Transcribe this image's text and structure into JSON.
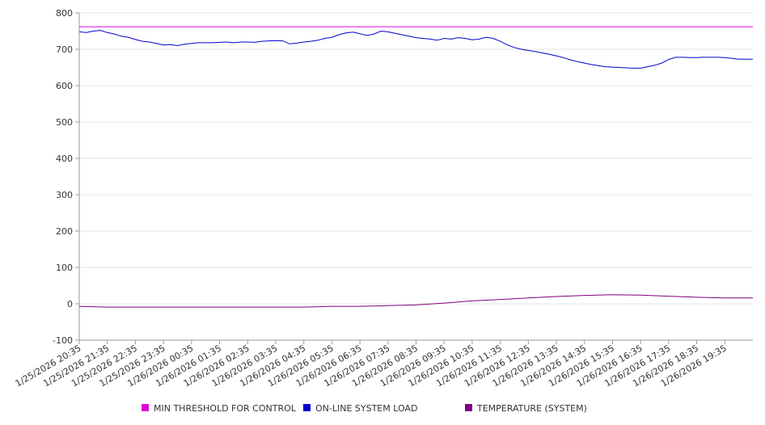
{
  "chart_data": {
    "type": "line",
    "ylim": [
      -100,
      800
    ],
    "y_ticks": [
      800,
      700,
      600,
      500,
      400,
      300,
      200,
      100,
      0,
      -100
    ],
    "x_ticks": [
      "1/25/2026 20:35",
      "1/25/2026 21:35",
      "1/25/2026 22:35",
      "1/25/2026 23:35",
      "1/26/2026 00:35",
      "1/26/2026 01:35",
      "1/26/2026 02:35",
      "1/26/2026 03:35",
      "1/26/2026 04:35",
      "1/26/2026 05:35",
      "1/26/2026 06:35",
      "1/26/2026 07:35",
      "1/26/2026 08:35",
      "1/26/2026 09:35",
      "1/26/2026 10:35",
      "1/26/2026 11:35",
      "1/26/2026 12:35",
      "1/26/2026 13:35",
      "1/26/2026 14:35",
      "1/26/2026 15:35",
      "1/26/2026 16:35",
      "1/26/2026 17:35",
      "1/26/2026 18:35",
      "1/26/2026 19:35"
    ],
    "x_range": [
      "1/25/2026 20:35",
      "1/26/2026 20:35"
    ],
    "grid": true,
    "legend_position": "bottom",
    "series": [
      {
        "name": "MIN THRESHOLD FOR CONTROL",
        "color": "#dd00dd",
        "points": [
          [
            "1/25/2026 20:35",
            762
          ],
          [
            "1/26/2026 20:35",
            762
          ]
        ]
      },
      {
        "name": "ON-LINE SYSTEM LOAD",
        "color": "#0000cc",
        "points": [
          [
            "1/25/2026 20:35",
            748
          ],
          [
            "1/25/2026 20:50",
            746
          ],
          [
            "1/25/2026 21:05",
            750
          ],
          [
            "1/25/2026 21:20",
            752
          ],
          [
            "1/25/2026 21:35",
            746
          ],
          [
            "1/25/2026 21:50",
            742
          ],
          [
            "1/25/2026 22:05",
            736
          ],
          [
            "1/25/2026 22:20",
            733
          ],
          [
            "1/25/2026 22:35",
            727
          ],
          [
            "1/25/2026 22:50",
            722
          ],
          [
            "1/25/2026 23:05",
            720
          ],
          [
            "1/25/2026 23:20",
            716
          ],
          [
            "1/25/2026 23:35",
            712
          ],
          [
            "1/25/2026 23:50",
            713
          ],
          [
            "1/26/2026 00:05",
            710
          ],
          [
            "1/26/2026 00:20",
            714
          ],
          [
            "1/26/2026 00:35",
            716
          ],
          [
            "1/26/2026 00:50",
            718
          ],
          [
            "1/26/2026 01:05",
            718
          ],
          [
            "1/26/2026 01:20",
            718
          ],
          [
            "1/26/2026 01:35",
            719
          ],
          [
            "1/26/2026 01:50",
            720
          ],
          [
            "1/26/2026 02:05",
            718
          ],
          [
            "1/26/2026 02:20",
            720
          ],
          [
            "1/26/2026 02:35",
            720
          ],
          [
            "1/26/2026 02:50",
            719
          ],
          [
            "1/26/2026 03:05",
            722
          ],
          [
            "1/26/2026 03:20",
            723
          ],
          [
            "1/26/2026 03:35",
            724
          ],
          [
            "1/26/2026 03:50",
            723
          ],
          [
            "1/26/2026 04:05",
            715
          ],
          [
            "1/26/2026 04:20",
            717
          ],
          [
            "1/26/2026 04:35",
            720
          ],
          [
            "1/26/2026 04:50",
            722
          ],
          [
            "1/26/2026 05:05",
            725
          ],
          [
            "1/26/2026 05:20",
            730
          ],
          [
            "1/26/2026 05:35",
            733
          ],
          [
            "1/26/2026 05:50",
            740
          ],
          [
            "1/26/2026 06:05",
            745
          ],
          [
            "1/26/2026 06:20",
            747
          ],
          [
            "1/26/2026 06:35",
            743
          ],
          [
            "1/26/2026 06:50",
            738
          ],
          [
            "1/26/2026 07:05",
            742
          ],
          [
            "1/26/2026 07:20",
            750
          ],
          [
            "1/26/2026 07:35",
            748
          ],
          [
            "1/26/2026 07:50",
            744
          ],
          [
            "1/26/2026 08:05",
            740
          ],
          [
            "1/26/2026 08:20",
            736
          ],
          [
            "1/26/2026 08:35",
            732
          ],
          [
            "1/26/2026 08:50",
            730
          ],
          [
            "1/26/2026 09:05",
            728
          ],
          [
            "1/26/2026 09:20",
            725
          ],
          [
            "1/26/2026 09:35",
            730
          ],
          [
            "1/26/2026 09:50",
            728
          ],
          [
            "1/26/2026 10:05",
            732
          ],
          [
            "1/26/2026 10:20",
            730
          ],
          [
            "1/26/2026 10:35",
            726
          ],
          [
            "1/26/2026 10:50",
            728
          ],
          [
            "1/26/2026 11:05",
            733
          ],
          [
            "1/26/2026 11:20",
            730
          ],
          [
            "1/26/2026 11:35",
            722
          ],
          [
            "1/26/2026 11:50",
            712
          ],
          [
            "1/26/2026 12:05",
            705
          ],
          [
            "1/26/2026 12:20",
            700
          ],
          [
            "1/26/2026 12:35",
            697
          ],
          [
            "1/26/2026 12:50",
            694
          ],
          [
            "1/26/2026 13:05",
            690
          ],
          [
            "1/26/2026 13:20",
            686
          ],
          [
            "1/26/2026 13:35",
            682
          ],
          [
            "1/26/2026 13:50",
            677
          ],
          [
            "1/26/2026 14:05",
            671
          ],
          [
            "1/26/2026 14:20",
            666
          ],
          [
            "1/26/2026 14:35",
            662
          ],
          [
            "1/26/2026 14:50",
            658
          ],
          [
            "1/26/2026 15:05",
            655
          ],
          [
            "1/26/2026 15:20",
            652
          ],
          [
            "1/26/2026 15:35",
            651
          ],
          [
            "1/26/2026 15:50",
            650
          ],
          [
            "1/26/2026 16:05",
            649
          ],
          [
            "1/26/2026 16:20",
            648
          ],
          [
            "1/26/2026 16:35",
            648
          ],
          [
            "1/26/2026 16:50",
            652
          ],
          [
            "1/26/2026 17:05",
            656
          ],
          [
            "1/26/2026 17:20",
            662
          ],
          [
            "1/26/2026 17:35",
            672
          ],
          [
            "1/26/2026 17:50",
            678
          ],
          [
            "1/26/2026 18:05",
            678
          ],
          [
            "1/26/2026 18:20",
            677
          ],
          [
            "1/26/2026 18:35",
            677
          ],
          [
            "1/26/2026 18:50",
            678
          ],
          [
            "1/26/2026 19:05",
            678
          ],
          [
            "1/26/2026 19:20",
            678
          ],
          [
            "1/26/2026 19:35",
            677
          ],
          [
            "1/26/2026 19:50",
            675
          ],
          [
            "1/26/2026 20:05",
            673
          ],
          [
            "1/26/2026 20:20",
            673
          ],
          [
            "1/26/2026 20:35",
            673
          ]
        ]
      },
      {
        "name": "TEMPERATURE (SYSTEM)",
        "color": "#800080",
        "points": [
          [
            "1/25/2026 20:35",
            -7
          ],
          [
            "1/25/2026 21:35",
            -9
          ],
          [
            "1/25/2026 22:35",
            -9
          ],
          [
            "1/25/2026 23:35",
            -9
          ],
          [
            "1/26/2026 00:35",
            -9
          ],
          [
            "1/26/2026 01:35",
            -9
          ],
          [
            "1/26/2026 02:35",
            -9
          ],
          [
            "1/26/2026 03:35",
            -9
          ],
          [
            "1/26/2026 04:35",
            -9
          ],
          [
            "1/26/2026 05:35",
            -7
          ],
          [
            "1/26/2026 06:35",
            -7
          ],
          [
            "1/26/2026 07:35",
            -5
          ],
          [
            "1/26/2026 08:35",
            -3
          ],
          [
            "1/26/2026 09:35",
            2
          ],
          [
            "1/26/2026 10:35",
            8
          ],
          [
            "1/26/2026 11:35",
            12
          ],
          [
            "1/26/2026 12:35",
            16
          ],
          [
            "1/26/2026 13:35",
            20
          ],
          [
            "1/26/2026 14:35",
            23
          ],
          [
            "1/26/2026 15:35",
            25
          ],
          [
            "1/26/2026 16:35",
            24
          ],
          [
            "1/26/2026 17:35",
            21
          ],
          [
            "1/26/2026 18:35",
            18
          ],
          [
            "1/26/2026 19:35",
            16
          ],
          [
            "1/26/2026 20:35",
            16
          ]
        ]
      }
    ]
  }
}
